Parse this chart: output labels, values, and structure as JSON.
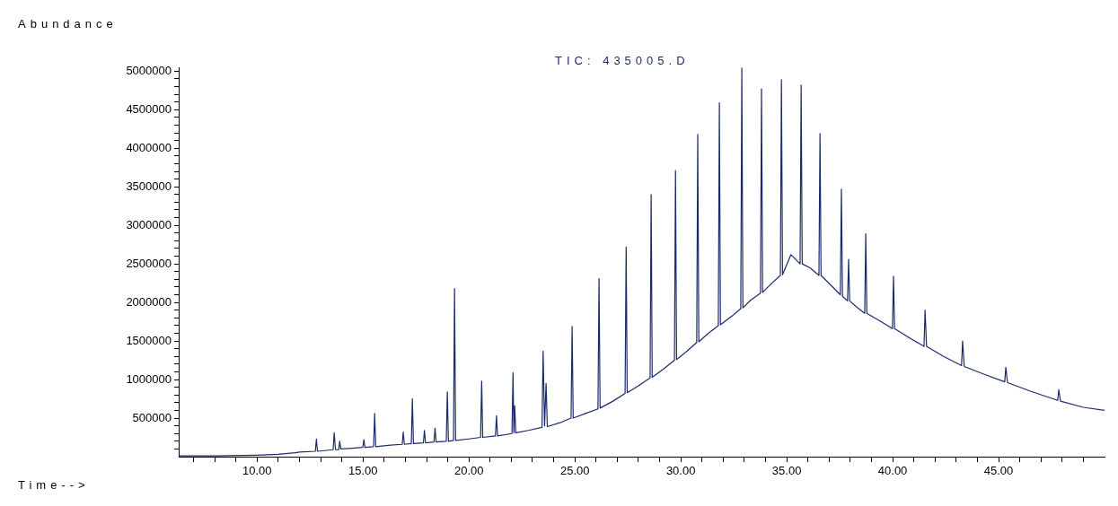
{
  "chart_data": {
    "type": "line",
    "title": "TIC: 435005.D",
    "xlabel": "Time-->",
    "ylabel": "Abundance",
    "xlim": [
      6.3,
      50
    ],
    "ylim": [
      0,
      5050000
    ],
    "xticks": [
      {
        "value": 7,
        "label": null
      },
      {
        "value": 8,
        "label": null
      },
      {
        "value": 9,
        "label": null
      },
      {
        "value": 10,
        "label": "10.00"
      },
      {
        "value": 11,
        "label": null
      },
      {
        "value": 12,
        "label": null
      },
      {
        "value": 13,
        "label": null
      },
      {
        "value": 14,
        "label": null
      },
      {
        "value": 15,
        "label": "15.00"
      },
      {
        "value": 16,
        "label": null
      },
      {
        "value": 17,
        "label": null
      },
      {
        "value": 18,
        "label": null
      },
      {
        "value": 19,
        "label": null
      },
      {
        "value": 20,
        "label": "20.00"
      },
      {
        "value": 21,
        "label": null
      },
      {
        "value": 22,
        "label": null
      },
      {
        "value": 23,
        "label": null
      },
      {
        "value": 24,
        "label": null
      },
      {
        "value": 25,
        "label": "25.00"
      },
      {
        "value": 26,
        "label": null
      },
      {
        "value": 27,
        "label": null
      },
      {
        "value": 28,
        "label": null
      },
      {
        "value": 29,
        "label": null
      },
      {
        "value": 30,
        "label": "30.00"
      },
      {
        "value": 31,
        "label": null
      },
      {
        "value": 32,
        "label": null
      },
      {
        "value": 33,
        "label": null
      },
      {
        "value": 34,
        "label": null
      },
      {
        "value": 35,
        "label": "35.00"
      },
      {
        "value": 36,
        "label": null
      },
      {
        "value": 37,
        "label": null
      },
      {
        "value": 38,
        "label": null
      },
      {
        "value": 39,
        "label": null
      },
      {
        "value": 40,
        "label": "40.00"
      },
      {
        "value": 41,
        "label": null
      },
      {
        "value": 42,
        "label": null
      },
      {
        "value": 43,
        "label": null
      },
      {
        "value": 44,
        "label": null
      },
      {
        "value": 45,
        "label": "45.00"
      },
      {
        "value": 46,
        "label": null
      },
      {
        "value": 47,
        "label": null
      },
      {
        "value": 48,
        "label": null
      },
      {
        "value": 49,
        "label": null
      }
    ],
    "yticks": [
      {
        "value": 100000,
        "label": null
      },
      {
        "value": 200000,
        "label": null
      },
      {
        "value": 300000,
        "label": null
      },
      {
        "value": 400000,
        "label": null
      },
      500000,
      {
        "value": 600000,
        "label": null
      },
      {
        "value": 700000,
        "label": null
      },
      {
        "value": 800000,
        "label": null
      },
      {
        "value": 900000,
        "label": null
      },
      1000000,
      {
        "value": 1100000,
        "label": null
      },
      {
        "value": 1200000,
        "label": null
      },
      {
        "value": 1300000,
        "label": null
      },
      {
        "value": 1400000,
        "label": null
      },
      1500000,
      {
        "value": 1600000,
        "label": null
      },
      {
        "value": 1700000,
        "label": null
      },
      {
        "value": 1800000,
        "label": null
      },
      {
        "value": 1900000,
        "label": null
      },
      2000000,
      {
        "value": 2100000,
        "label": null
      },
      {
        "value": 2200000,
        "label": null
      },
      {
        "value": 2300000,
        "label": null
      },
      {
        "value": 2400000,
        "label": null
      },
      2500000,
      {
        "value": 2600000,
        "label": null
      },
      {
        "value": 2700000,
        "label": null
      },
      {
        "value": 2800000,
        "label": null
      },
      {
        "value": 2900000,
        "label": null
      },
      3000000,
      {
        "value": 3100000,
        "label": null
      },
      {
        "value": 3200000,
        "label": null
      },
      {
        "value": 3300000,
        "label": null
      },
      {
        "value": 3400000,
        "label": null
      },
      3500000,
      {
        "value": 3600000,
        "label": null
      },
      {
        "value": 3700000,
        "label": null
      },
      {
        "value": 3800000,
        "label": null
      },
      {
        "value": 3900000,
        "label": null
      },
      4000000,
      {
        "value": 4100000,
        "label": null
      },
      {
        "value": 4200000,
        "label": null
      },
      {
        "value": 4300000,
        "label": null
      },
      {
        "value": 4400000,
        "label": null
      },
      4500000,
      {
        "value": 4600000,
        "label": null
      },
      {
        "value": 4700000,
        "label": null
      },
      {
        "value": 4800000,
        "label": null
      },
      {
        "value": 4900000,
        "label": null
      },
      5000000
    ],
    "x": [
      6.3,
      8,
      10,
      11,
      11.8,
      12,
      12.75,
      12.8,
      12.85,
      13.59,
      13.64,
      13.7,
      13.85,
      13.9,
      13.95,
      14.5,
      14.99,
      15.04,
      15.09,
      15.5,
      15.55,
      15.6,
      16.3,
      16.85,
      16.9,
      16.95,
      17.28,
      17.33,
      17.38,
      17.85,
      17.9,
      17.95,
      18.35,
      18.4,
      18.45,
      18.93,
      18.98,
      19.03,
      19.27,
      19.32,
      19.37,
      20,
      20.55,
      20.6,
      20.65,
      21.25,
      21.3,
      21.35,
      22.03,
      22.08,
      22.12,
      22.16,
      22.21,
      22.8,
      23.45,
      23.5,
      23.57,
      23.64,
      23.7,
      24.3,
      24.82,
      24.87,
      24.92,
      25.5,
      26.09,
      26.14,
      26.19,
      26.8,
      27.37,
      27.42,
      27.47,
      28,
      28.55,
      28.6,
      28.65,
      29.2,
      29.7,
      29.75,
      29.8,
      30.3,
      30.75,
      30.8,
      30.85,
      31.3,
      31.77,
      31.82,
      31.87,
      32.4,
      32.83,
      32.88,
      32.93,
      33.3,
      33.76,
      33.81,
      33.86,
      34.3,
      34.7,
      34.75,
      34.8,
      35.2,
      35.63,
      35.68,
      35.73,
      36.1,
      36.52,
      36.57,
      36.62,
      37.1,
      37.53,
      37.58,
      37.63,
      37.87,
      37.92,
      37.97,
      38.3,
      38.68,
      38.73,
      38.78,
      39.4,
      39.99,
      40.04,
      40.09,
      40.8,
      41.48,
      41.53,
      41.6,
      42.4,
      43.25,
      43.3,
      43.38,
      44.3,
      45.29,
      45.34,
      45.42,
      46.5,
      47.79,
      47.84,
      47.92,
      49,
      50
    ],
    "series": [
      {
        "color": "#1b2a6b",
        "values": [
          10000,
          10000,
          20000,
          30000,
          50000,
          60000,
          70000,
          230000,
          70000,
          90000,
          310000,
          90000,
          90000,
          200000,
          100000,
          110000,
          120000,
          220000,
          120000,
          130000,
          560000,
          130000,
          150000,
          160000,
          320000,
          160000,
          170000,
          750000,
          170000,
          180000,
          340000,
          180000,
          190000,
          370000,
          190000,
          200000,
          840000,
          200000,
          210000,
          2180000,
          210000,
          230000,
          250000,
          980000,
          250000,
          270000,
          530000,
          270000,
          300000,
          1090000,
          310000,
          660000,
          310000,
          340000,
          380000,
          1370000,
          400000,
          950000,
          390000,
          440000,
          500000,
          1690000,
          500000,
          560000,
          620000,
          2310000,
          630000,
          720000,
          820000,
          2720000,
          830000,
          920000,
          1020000,
          3400000,
          1030000,
          1140000,
          1250000,
          3710000,
          1260000,
          1370000,
          1480000,
          4180000,
          1490000,
          1600000,
          1700000,
          4590000,
          1710000,
          1820000,
          1920000,
          5040000,
          1930000,
          2030000,
          2120000,
          4770000,
          2130000,
          2250000,
          2350000,
          4890000,
          2360000,
          2620000,
          2500000,
          4820000,
          2500000,
          2450000,
          2350000,
          4190000,
          2350000,
          2220000,
          2100000,
          3470000,
          2080000,
          2020000,
          2560000,
          2020000,
          1940000,
          1860000,
          2890000,
          1860000,
          1760000,
          1660000,
          2340000,
          1660000,
          1540000,
          1430000,
          1900000,
          1430000,
          1300000,
          1180000,
          1500000,
          1170000,
          1070000,
          970000,
          1160000,
          960000,
          850000,
          730000,
          870000,
          720000,
          640000,
          600000
        ]
      }
    ]
  }
}
